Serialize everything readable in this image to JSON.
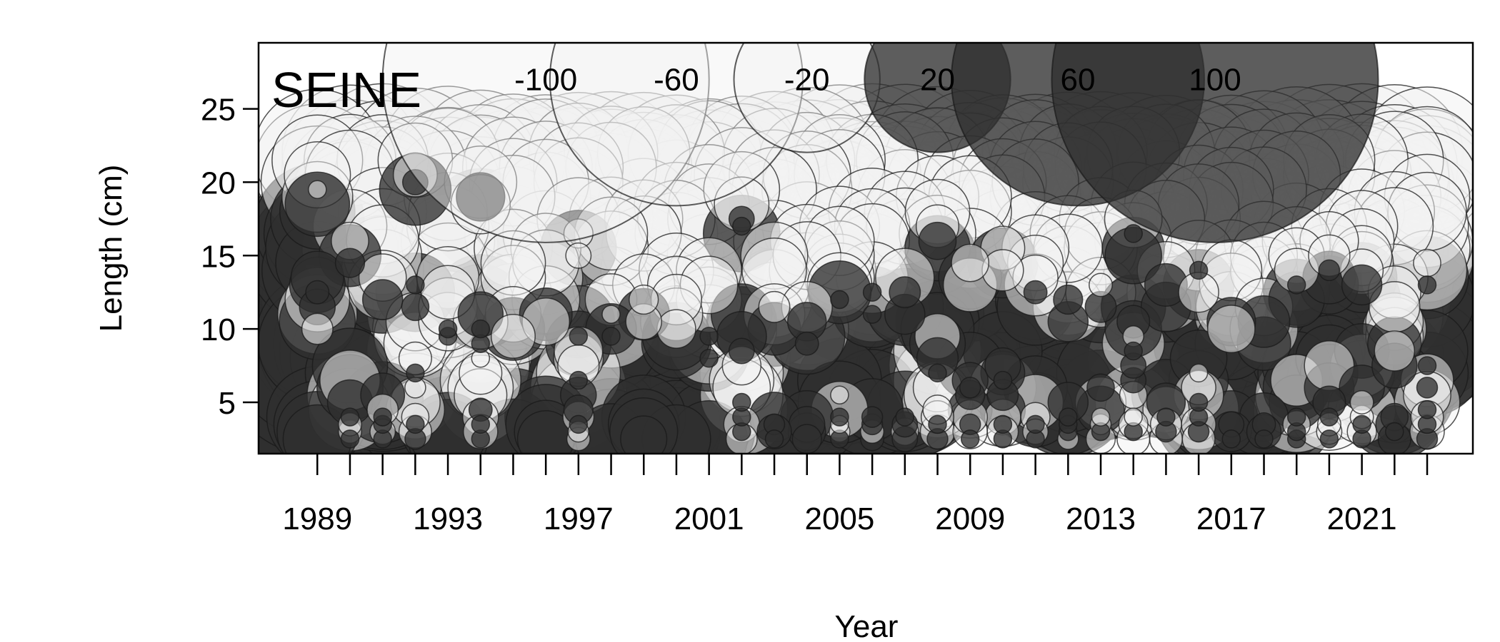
{
  "chart_data": {
    "type": "scatter",
    "subtype": "bubble",
    "title": "SEINE",
    "xlabel": "Year",
    "ylabel": "Length (cm)",
    "x_range": [
      1987.2,
      2024.4
    ],
    "y_range": [
      1.5,
      29.5
    ],
    "x_ticks": [
      1989,
      1990,
      1991,
      1992,
      1993,
      1994,
      1995,
      1996,
      1997,
      1998,
      1999,
      2000,
      2001,
      2002,
      2003,
      2004,
      2005,
      2006,
      2007,
      2008,
      2009,
      2010,
      2011,
      2012,
      2013,
      2014,
      2015,
      2016,
      2017,
      2018,
      2019,
      2020,
      2021,
      2022,
      2023
    ],
    "x_tick_labels": [
      "1989",
      "1993",
      "1997",
      "2001",
      "2005",
      "2009",
      "2013",
      "2017",
      "2021"
    ],
    "y_tick_labels": [
      "5",
      "10",
      "15",
      "20",
      "25"
    ],
    "legend": {
      "placement": "top",
      "entries": [
        {
          "label": "-100",
          "value": -100
        },
        {
          "label": "-60",
          "value": -60
        },
        {
          "label": "-20",
          "value": -20
        },
        {
          "label": "20",
          "value": 20
        },
        {
          "label": "60",
          "value": 60
        },
        {
          "label": "100",
          "value": 100
        }
      ]
    },
    "colors": {
      "positive": "#303030",
      "negative": "#f2f2f2",
      "edge": "#1a1a1a"
    },
    "years": [
      1989,
      1990,
      1991,
      1992,
      1993,
      1994,
      1995,
      1996,
      1997,
      1998,
      1999,
      2000,
      2001,
      2002,
      2003,
      2004,
      2005,
      2006,
      2007,
      2008,
      2009,
      2010,
      2011,
      2012,
      2013,
      2014,
      2015,
      2016,
      2017,
      2018,
      2019,
      2020,
      2021,
      2022,
      2023
    ],
    "length_bins": [
      2.5,
      3,
      3.5,
      4,
      4.5,
      5,
      5.5,
      6,
      6.5,
      7,
      7.5,
      8,
      8.5,
      9,
      9.5,
      10,
      10.5,
      11,
      11.5,
      12,
      12.5,
      13,
      13.5,
      14,
      14.5,
      15,
      15.5,
      16,
      16.5,
      17,
      17.5,
      18,
      18.5,
      19,
      19.5,
      20,
      20.5,
      21,
      21.5,
      22
    ],
    "residual_peaks": [
      {
        "year": 1989,
        "length": 5.5,
        "value": 80
      },
      {
        "year": 1989,
        "length": 16,
        "value": 25
      },
      {
        "year": 1990,
        "length": 11,
        "value": 45
      },
      {
        "year": 1991,
        "length": 9,
        "value": 35
      },
      {
        "year": 1992,
        "length": 16.5,
        "value": 45
      },
      {
        "year": 1993,
        "length": 5,
        "value": 70
      },
      {
        "year": 1994,
        "length": 15,
        "value": 45
      },
      {
        "year": 1995,
        "length": 5,
        "value": 75
      },
      {
        "year": 1996,
        "length": 6,
        "value": 75
      },
      {
        "year": 1997,
        "length": 12.5,
        "value": 25
      },
      {
        "year": 1998,
        "length": 5,
        "value": 70
      },
      {
        "year": 1999,
        "length": 6,
        "value": 70
      },
      {
        "year": 2000,
        "length": 5,
        "value": 70
      },
      {
        "year": 2001,
        "length": 4,
        "value": 55
      },
      {
        "year": 2002,
        "length": 14,
        "value": 30
      },
      {
        "year": 2003,
        "length": 7,
        "value": 35
      },
      {
        "year": 2004,
        "length": 6,
        "value": 25
      },
      {
        "year": 2005,
        "length": 9,
        "value": 30
      },
      {
        "year": 2006,
        "length": 8,
        "value": 30
      },
      {
        "year": 2007,
        "length": 8,
        "value": 30
      },
      {
        "year": 2008,
        "length": 13,
        "value": 25
      },
      {
        "year": 2009,
        "length": 10,
        "value": 25
      },
      {
        "year": 2010,
        "length": 11,
        "value": 30
      },
      {
        "year": 2011,
        "length": 9,
        "value": 30
      },
      {
        "year": 2012,
        "length": 8,
        "value": 25
      },
      {
        "year": 2013,
        "length": 9,
        "value": 25
      },
      {
        "year": 2014,
        "length": 13,
        "value": 20
      },
      {
        "year": 2015,
        "length": 9,
        "value": 25
      },
      {
        "year": 2016,
        "length": 10,
        "value": 20
      },
      {
        "year": 2017,
        "length": 6.5,
        "value": 30
      },
      {
        "year": 2018,
        "length": 6.5,
        "value": 25
      },
      {
        "year": 2019,
        "length": 10,
        "value": 20
      },
      {
        "year": 2020,
        "length": 11,
        "value": 20
      },
      {
        "year": 2021,
        "length": 11,
        "value": 20
      },
      {
        "year": 2022,
        "length": 6,
        "value": 15
      },
      {
        "year": 2023,
        "length": 10.5,
        "value": 25
      }
    ]
  }
}
